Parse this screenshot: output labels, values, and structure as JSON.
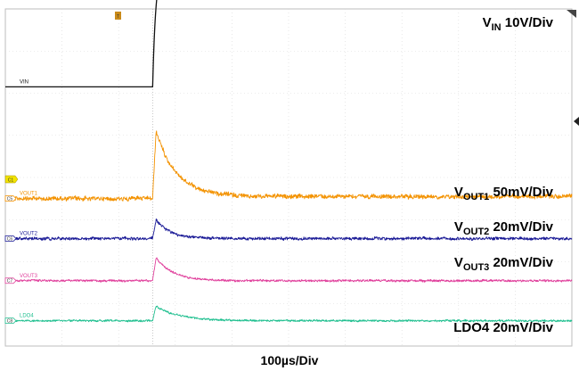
{
  "chart_data": {
    "type": "line",
    "title": "",
    "xlabel": "100µs/Div",
    "ylabel": "",
    "grid": true,
    "x_divisions": 10,
    "y_divisions": 8,
    "trigger_division": 2.6,
    "series": [
      {
        "name": "VIN",
        "tag": "VIN",
        "scale_label": {
          "main": "V",
          "sub": "IN",
          "rest": " 10V/Div"
        },
        "color": "#111111",
        "baseline_div": 1.85,
        "step_div": 2.6,
        "rise_divs": 0.22,
        "amplitude_div": 2.8,
        "noise_div": 0
      },
      {
        "name": "VOUT1",
        "tag": "VOUT1",
        "marker": "C5",
        "scale_label": {
          "main": "V",
          "sub": "OUT1",
          "rest": " 50mV/Div"
        },
        "color": "#f39200",
        "baseline_div": 4.5,
        "step_div": 2.6,
        "spike_div": 1.6,
        "decay_divs": 0.35,
        "settle_offset_div": 0.05,
        "noise_div": 0.09
      },
      {
        "name": "VOUT2",
        "tag": "VOUT2",
        "marker": "C6",
        "scale_label": {
          "main": "V",
          "sub": "OUT2",
          "rest": " 20mV/Div"
        },
        "color": "#1a1a96",
        "baseline_div": 5.45,
        "step_div": 2.6,
        "spike_div": 0.45,
        "decay_divs": 0.25,
        "settle_offset_div": 0,
        "noise_div": 0.06
      },
      {
        "name": "VOUT3",
        "tag": "VOUT3",
        "marker": "C7",
        "scale_label": {
          "main": "V",
          "sub": "OUT3",
          "rest": " 20mV/Div"
        },
        "color": "#e0409c",
        "baseline_div": 6.45,
        "step_div": 2.6,
        "spike_div": 0.55,
        "decay_divs": 0.3,
        "settle_offset_div": 0,
        "noise_div": 0.045
      },
      {
        "name": "LDO4",
        "tag": "LDO4",
        "marker": "C8",
        "scale_label": {
          "main": "LDO4",
          "sub": "",
          "rest": " 20mV/Div"
        },
        "color": "#1fbf8f",
        "baseline_div": 7.4,
        "step_div": 2.6,
        "spike_div": 0.35,
        "decay_divs": 0.4,
        "settle_offset_div": 0,
        "noise_div": 0.04
      }
    ],
    "trigger_marker": "T",
    "trigger_level_marker": "C1"
  }
}
